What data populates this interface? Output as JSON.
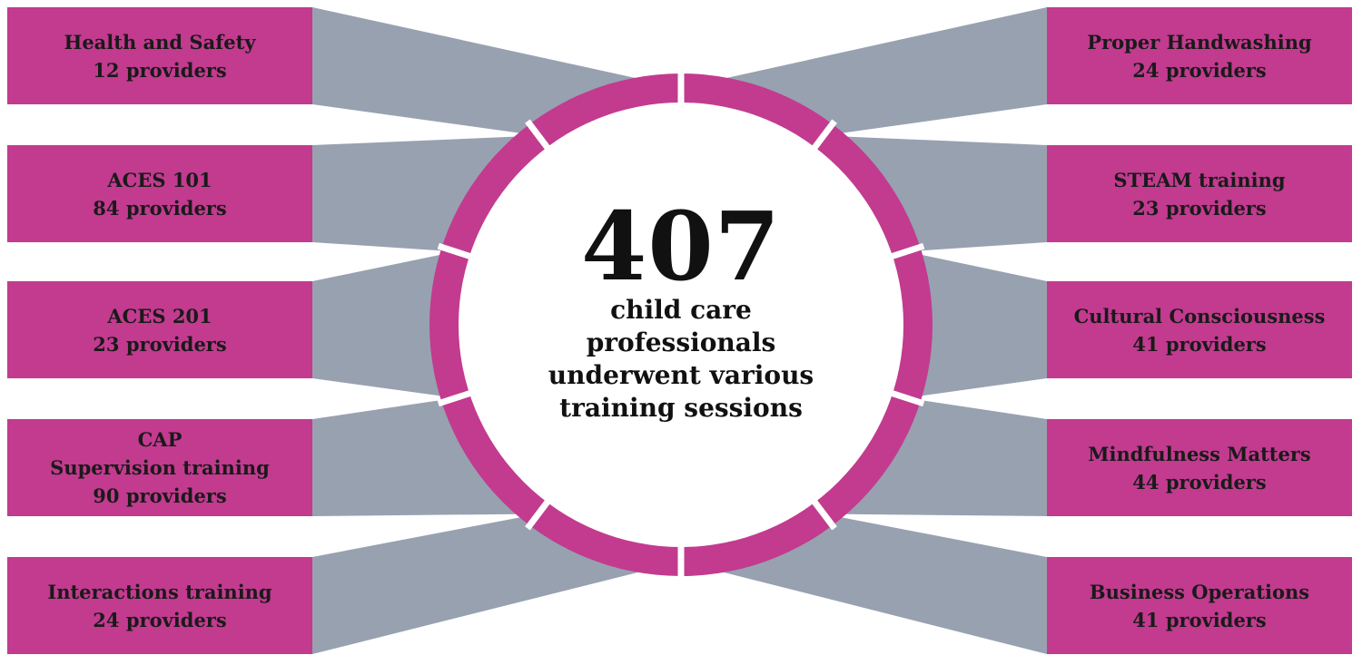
{
  "colors": {
    "accent": "#C23B8F",
    "connector": "#98A1B0",
    "ring_gap": "#FFFFFF",
    "text": "#1A1A1A"
  },
  "center": {
    "number": "407",
    "caption_lines": [
      "child care",
      "professionals",
      "underwent various",
      "training sessions"
    ]
  },
  "left_items": [
    {
      "lines": [
        "Health and Safety",
        "12 providers"
      ]
    },
    {
      "lines": [
        "ACES 101",
        "84 providers"
      ]
    },
    {
      "lines": [
        "ACES 201",
        "23 providers"
      ]
    },
    {
      "lines": [
        "CAP",
        "Supervision training",
        "90 providers"
      ]
    },
    {
      "lines": [
        "Interactions training",
        "24 providers"
      ]
    }
  ],
  "right_items": [
    {
      "lines": [
        "Proper Handwashing",
        "24 providers"
      ]
    },
    {
      "lines": [
        "STEAM training",
        "23 providers"
      ]
    },
    {
      "lines": [
        "Cultural Consciousness",
        "41 providers"
      ]
    },
    {
      "lines": [
        "Mindfulness Matters",
        "44 providers"
      ]
    },
    {
      "lines": [
        "Business Operations",
        "41 providers"
      ]
    }
  ]
}
